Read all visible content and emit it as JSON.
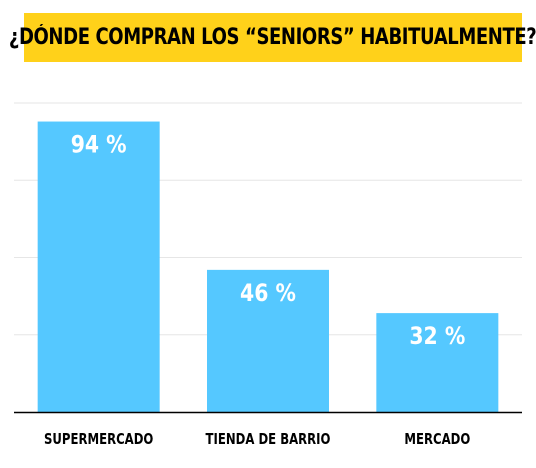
{
  "title": "¿DÓNDE COMPRAN LOS “SENIORS” HABITUALMENTE?",
  "colors": {
    "title_background": "#ffd11a",
    "bar": "#55c8ff",
    "bar_label": "#ffffff",
    "gridline": "#e6e6e6",
    "axis": "#000000"
  },
  "chart_data": {
    "type": "bar",
    "categories": [
      "SUPERMERCADO",
      "TIENDA DE BARRIO",
      "MERCADO"
    ],
    "values": [
      94,
      46,
      32
    ],
    "value_labels": [
      "94 %",
      "46 %",
      "32 %"
    ],
    "title": "¿DÓNDE COMPRAN LOS “SENIORS” HABITUALMENTE?",
    "xlabel": "",
    "ylabel": "",
    "ylim": [
      0,
      100
    ],
    "grid": true,
    "legend": "none"
  }
}
